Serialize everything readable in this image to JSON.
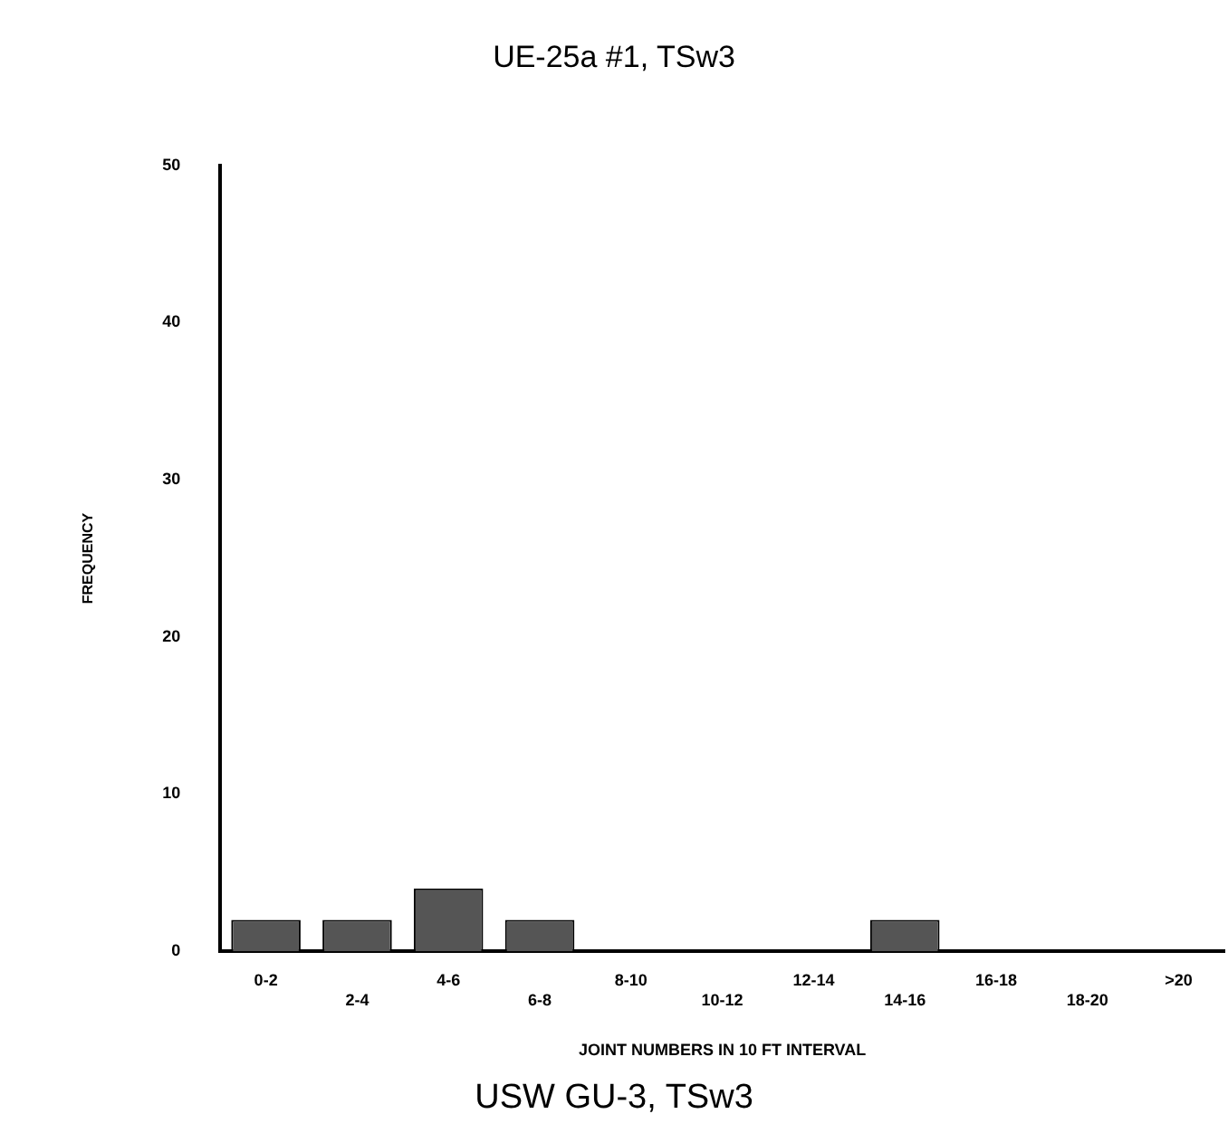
{
  "chart_data": {
    "type": "bar",
    "title": "UE-25a #1, TSw3",
    "xlabel": "JOINT NUMBERS IN 10 FT INTERVAL",
    "ylabel": "FREQUENCY",
    "categories": [
      "0-2",
      "2-4",
      "4-6",
      "6-8",
      "8-10",
      "10-12",
      "12-14",
      "14-16",
      "16-18",
      "18-20",
      ">20"
    ],
    "values": [
      2,
      2,
      4,
      2,
      0,
      0,
      0,
      2,
      0,
      0,
      0
    ],
    "color": "#555555",
    "ylim": [
      0,
      50
    ],
    "yticks": [
      0,
      10,
      20,
      30,
      40,
      50
    ],
    "grid": false,
    "legend": false,
    "annotations": [
      "USW GU-3, TSw3"
    ]
  }
}
